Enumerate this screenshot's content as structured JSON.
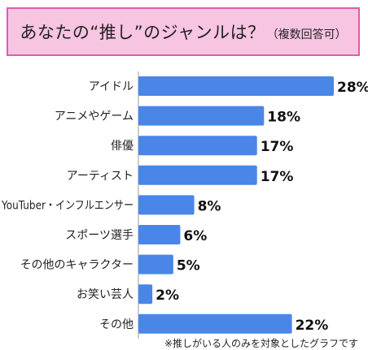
{
  "chart_data": {
    "type": "bar",
    "orientation": "horizontal",
    "title": "あなたの“推し”のジャンルは？",
    "subtitle": "（複数回答可）",
    "categories": [
      "アイドル",
      "アニメやゲーム",
      "俳優",
      "アーティスト",
      "YouTuber・インフルエンサー",
      "スポーツ選手",
      "その他のキャラクター",
      "お笑い芸人",
      "その他"
    ],
    "values": [
      28,
      18,
      17,
      17,
      8,
      6,
      5,
      2,
      22
    ],
    "value_labels": [
      "28%",
      "18%",
      "17%",
      "17%",
      "8%",
      "6%",
      "5%",
      "2%",
      "22%"
    ],
    "unit": "%",
    "xlim": [
      0,
      28
    ],
    "grid": false,
    "legend": "none",
    "footnote": "※推しがいる人のみを対象としたグラフです"
  },
  "colors": {
    "bar": "#4a86e8",
    "title_bg": "#f7c4e2",
    "title_border": "#e25bb0",
    "axis": "#999999"
  }
}
